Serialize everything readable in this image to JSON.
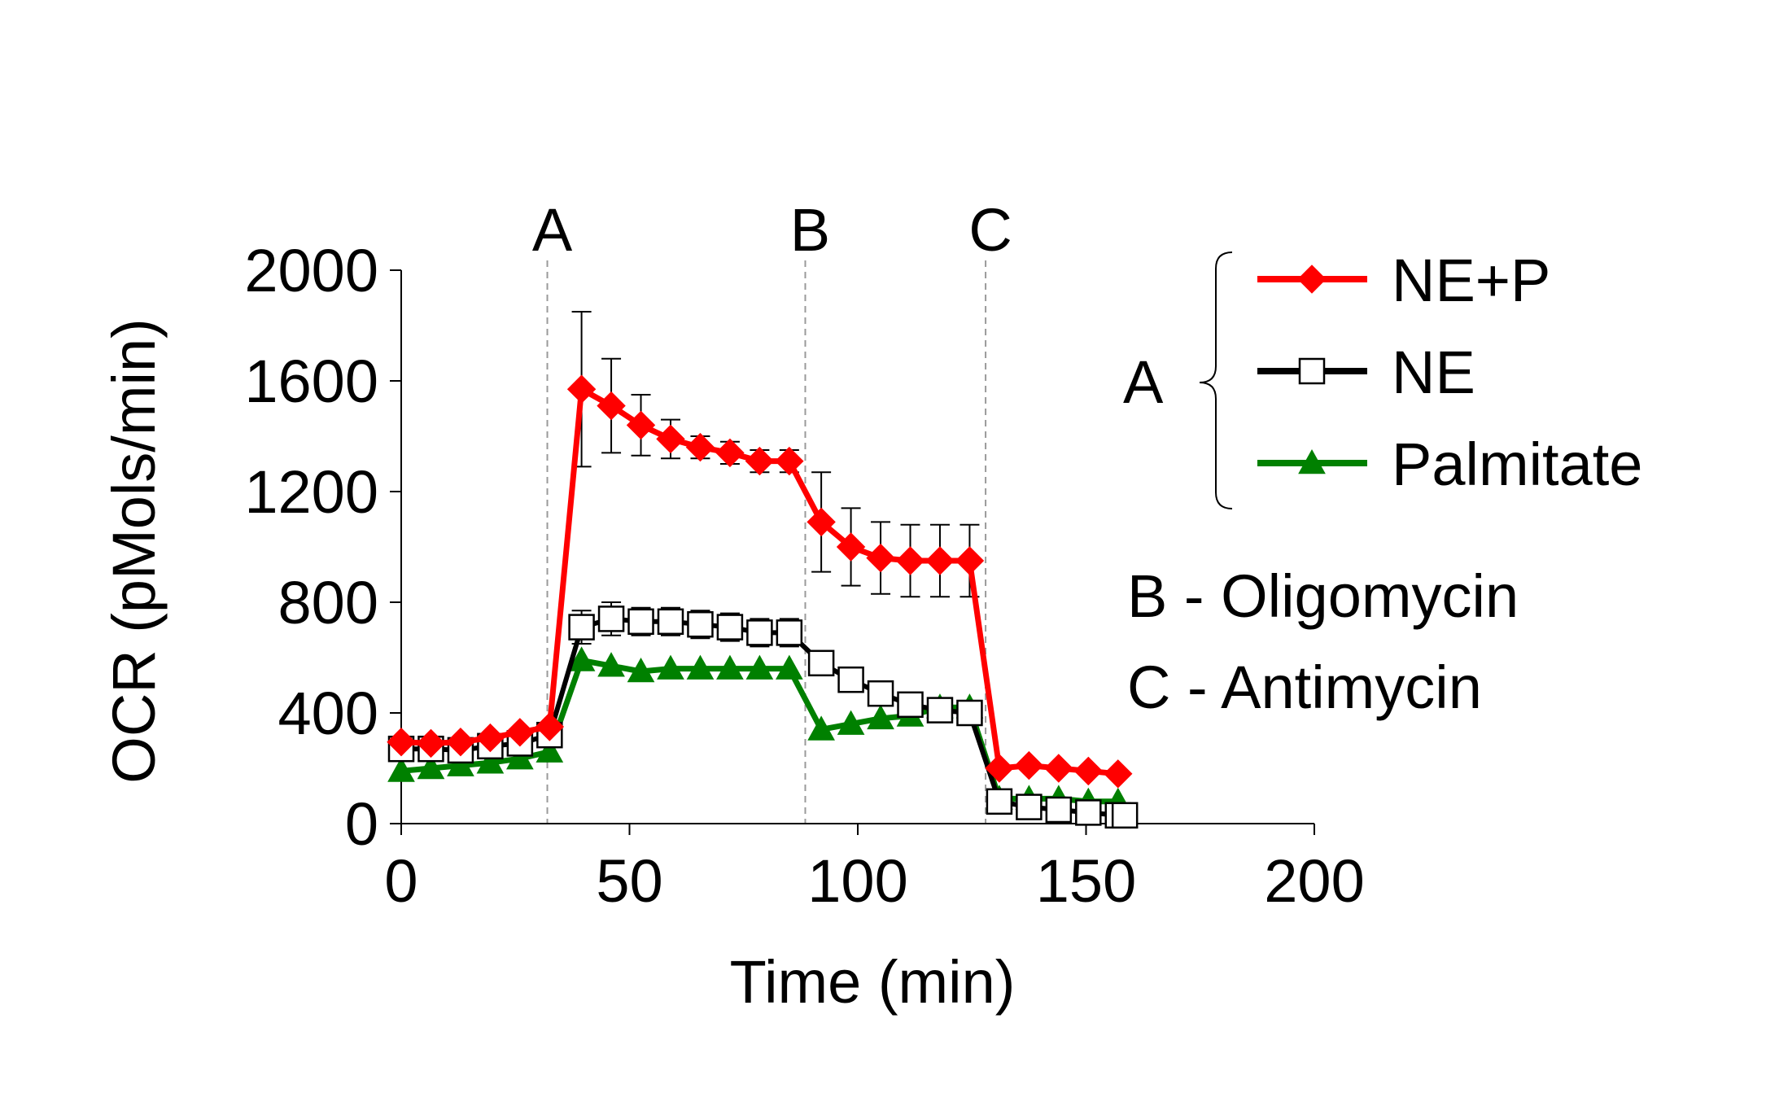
{
  "chart_data": {
    "type": "line",
    "title": "",
    "xlabel": "Time (min)",
    "ylabel": "OCR (pMols/min)",
    "xlim": [
      0,
      200
    ],
    "ylim": [
      0,
      2000
    ],
    "xticks": [
      0,
      50,
      100,
      150,
      200
    ],
    "yticks": [
      0,
      400,
      800,
      1200,
      1600,
      2000
    ],
    "grid": false,
    "events": [
      {
        "label": "A",
        "x": 32
      },
      {
        "label": "B",
        "x": 88.5
      },
      {
        "label": "C",
        "x": 128
      }
    ],
    "x": [
      0,
      6.5,
      13,
      19.5,
      26,
      32.5,
      39.5,
      46,
      52.5,
      59,
      65.5,
      72,
      78.5,
      85,
      92,
      98.5,
      105,
      111.5,
      118,
      124.5,
      131,
      137.5,
      144,
      150.5,
      157,
      158.5
    ],
    "series": [
      {
        "name": "NE+P",
        "color": "#ff0000",
        "marker": "diamond",
        "x": [
          0,
          6.5,
          13,
          19.5,
          26,
          32.5,
          39.5,
          46,
          52.5,
          59,
          65.5,
          72,
          78.5,
          85,
          92,
          98.5,
          105,
          111.5,
          118,
          124.5,
          131,
          137.5,
          144,
          150.5,
          157
        ],
        "values": [
          295,
          290,
          295,
          310,
          330,
          350,
          1570,
          1510,
          1440,
          1390,
          1360,
          1340,
          1310,
          1310,
          1090,
          1000,
          960,
          950,
          950,
          950,
          200,
          210,
          200,
          190,
          180
        ],
        "err": [
          0,
          0,
          0,
          0,
          0,
          0,
          280,
          170,
          110,
          70,
          40,
          40,
          40,
          40,
          180,
          140,
          130,
          130,
          130,
          130,
          0,
          0,
          0,
          0,
          0
        ]
      },
      {
        "name": "NE",
        "color": "#000000",
        "marker": "open-square",
        "x": [
          0,
          6.5,
          13,
          19.5,
          26,
          32.5,
          39.5,
          46,
          52.5,
          59,
          65.5,
          72,
          78.5,
          85,
          92,
          98.5,
          105,
          111.5,
          118,
          124.5,
          131,
          137.5,
          144,
          150.5,
          157,
          158.5
        ],
        "values": [
          270,
          270,
          265,
          280,
          290,
          320,
          710,
          740,
          730,
          730,
          720,
          710,
          690,
          690,
          580,
          520,
          470,
          430,
          410,
          400,
          80,
          60,
          50,
          40,
          30,
          30
        ],
        "err": [
          0,
          0,
          0,
          0,
          0,
          0,
          60,
          60,
          50,
          50,
          50,
          50,
          50,
          50,
          0,
          0,
          0,
          0,
          0,
          0,
          0,
          0,
          0,
          0,
          0,
          0
        ]
      },
      {
        "name": "Palmitate",
        "color": "#008000",
        "marker": "triangle",
        "x": [
          0,
          6.5,
          13,
          19.5,
          26,
          32.5,
          39.5,
          46,
          52.5,
          59,
          65.5,
          72,
          78.5,
          85,
          92,
          98.5,
          105,
          111.5,
          118,
          124.5,
          131,
          137.5,
          144,
          150.5,
          157
        ],
        "values": [
          190,
          200,
          210,
          220,
          235,
          260,
          590,
          570,
          550,
          560,
          560,
          560,
          560,
          560,
          340,
          360,
          380,
          390,
          420,
          420,
          90,
          90,
          90,
          80,
          80
        ],
        "err": [
          0,
          0,
          0,
          0,
          0,
          0,
          0,
          0,
          0,
          0,
          0,
          0,
          0,
          0,
          0,
          0,
          0,
          0,
          0,
          0,
          0,
          0,
          0,
          0,
          0
        ]
      }
    ],
    "legend": {
      "position": "right",
      "group_label": "A",
      "items": [
        "NE+P",
        "NE",
        "Palmitate"
      ]
    },
    "annotations": [
      "B - Oligomycin",
      "C - Antimycin"
    ]
  }
}
